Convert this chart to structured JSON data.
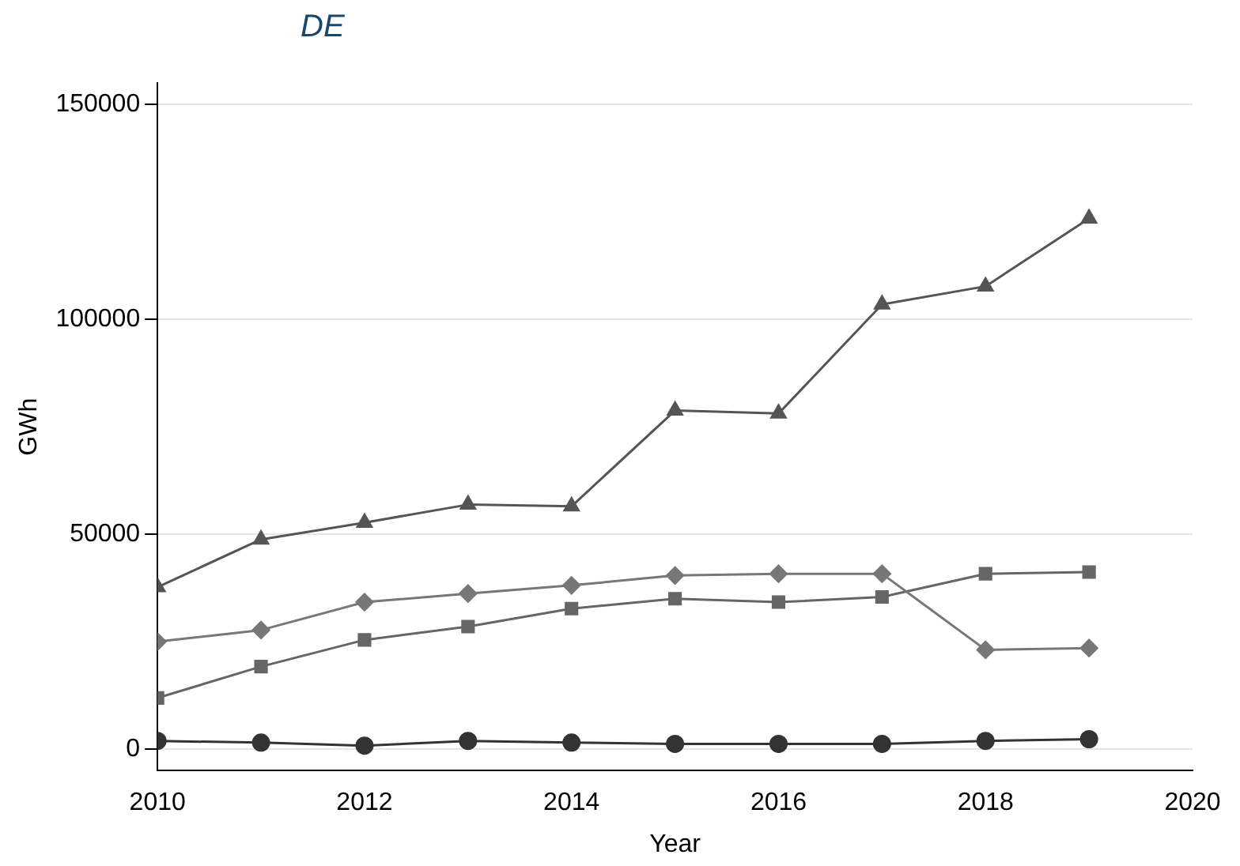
{
  "chart_data": {
    "type": "line",
    "title": "DE",
    "xlabel": "Year",
    "ylabel": "GWh",
    "x": [
      2010,
      2011,
      2012,
      2013,
      2014,
      2015,
      2016,
      2017,
      2018,
      2019
    ],
    "series": [
      {
        "color": "#555555",
        "marker": "triangle",
        "values": [
          37700,
          48800,
          52700,
          56900,
          56500,
          78800,
          78100,
          103500,
          107700,
          123500
        ]
      },
      {
        "color": "#777777",
        "marker": "diamond",
        "values": [
          25000,
          27700,
          34200,
          36200,
          38100,
          40400,
          40800,
          40800,
          23100,
          23500
        ]
      },
      {
        "color": "#666666",
        "marker": "square",
        "values": [
          11900,
          19200,
          25400,
          28500,
          32700,
          35000,
          34200,
          35400,
          40800,
          41200
        ]
      },
      {
        "color": "#333333",
        "marker": "circle",
        "values": [
          1900,
          1500,
          800,
          1900,
          1500,
          1200,
          1200,
          1200,
          1900,
          2300
        ]
      }
    ],
    "xlim": [
      2010,
      2020
    ],
    "xticks": [
      2010,
      2012,
      2014,
      2016,
      2018,
      2020
    ],
    "ylim": [
      -5000,
      155000
    ],
    "yticks": [
      0,
      50000,
      100000,
      150000
    ],
    "grid": "y",
    "legend": false,
    "line_style": "solid"
  }
}
